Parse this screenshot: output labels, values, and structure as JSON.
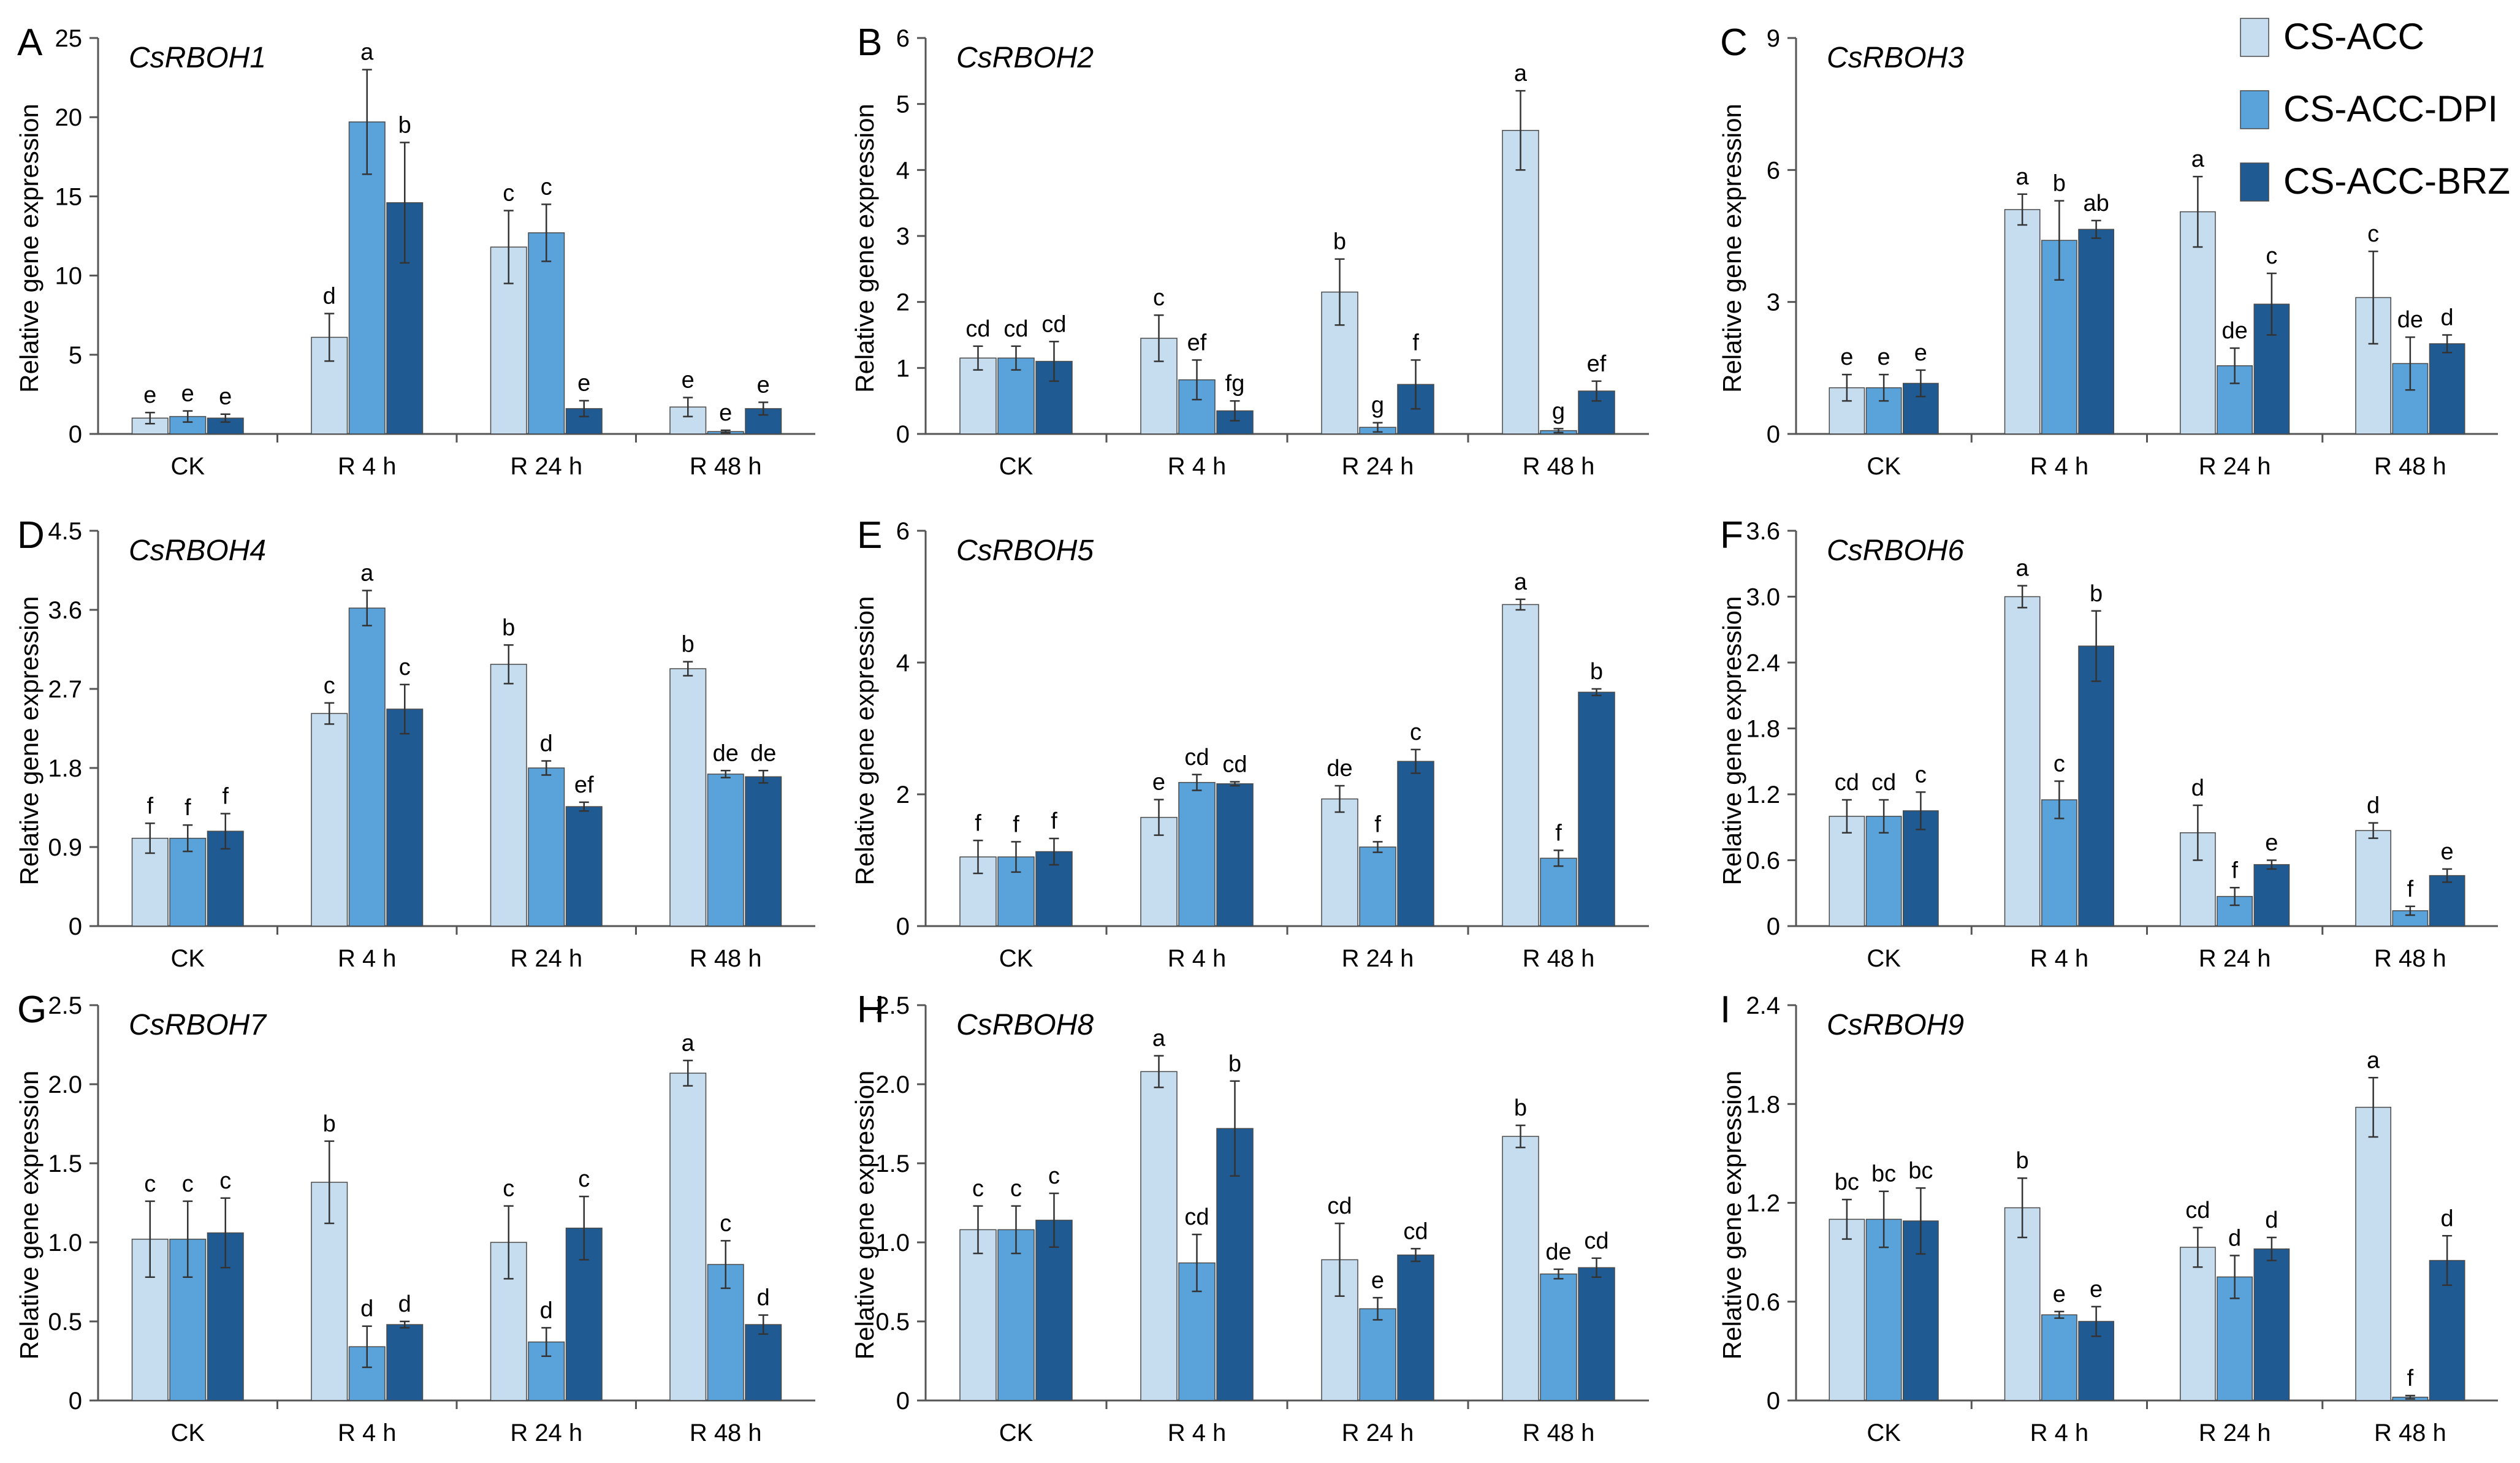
{
  "colors": {
    "series": [
      "#c6dcef",
      "#5aa3da",
      "#1f5a92"
    ],
    "stroke": "#4a4a4a",
    "axis": "#555555",
    "text": "#000000"
  },
  "legend": {
    "entries": [
      "CS-ACC",
      "CS-ACC-DPI",
      "CS-ACC-BRZ"
    ],
    "position": "top-right"
  },
  "chart_data": [
    {
      "panel": "A",
      "title": "CsRBOH1",
      "type": "bar",
      "ylabel": "Relative gene expression",
      "xlabel": "",
      "ylim": [
        0,
        25
      ],
      "yticks": [
        "0",
        "5",
        "10",
        "15",
        "20",
        "25"
      ],
      "categories": [
        "CK",
        "R 4 h",
        "R 24 h",
        "R 48 h"
      ],
      "series": [
        {
          "name": "CS-ACC",
          "values": [
            1.0,
            6.1,
            11.8,
            1.7
          ],
          "errors": [
            0.35,
            1.5,
            2.3,
            0.6
          ],
          "labels": [
            "e",
            "d",
            "c",
            "e"
          ]
        },
        {
          "name": "CS-ACC-DPI",
          "values": [
            1.1,
            19.7,
            12.7,
            0.15
          ],
          "errors": [
            0.35,
            3.3,
            1.8,
            0.08
          ],
          "labels": [
            "e",
            "a",
            "c",
            "e"
          ]
        },
        {
          "name": "CS-ACC-BRZ",
          "values": [
            1.0,
            14.6,
            1.6,
            1.6
          ],
          "errors": [
            0.25,
            3.8,
            0.5,
            0.4
          ],
          "labels": [
            "e",
            "b",
            "e",
            "e"
          ]
        }
      ]
    },
    {
      "panel": "B",
      "title": "CsRBOH2",
      "type": "bar",
      "ylabel": "Relative gene expression",
      "xlabel": "",
      "ylim": [
        0,
        6
      ],
      "yticks": [
        "0",
        "1",
        "2",
        "3",
        "4",
        "5",
        "6"
      ],
      "categories": [
        "CK",
        "R 4 h",
        "R 24 h",
        "R 48 h"
      ],
      "series": [
        {
          "name": "CS-ACC",
          "values": [
            1.15,
            1.45,
            2.15,
            4.6
          ],
          "errors": [
            0.18,
            0.35,
            0.5,
            0.6
          ],
          "labels": [
            "cd",
            "c",
            "b",
            "a"
          ]
        },
        {
          "name": "CS-ACC-DPI",
          "values": [
            1.15,
            0.82,
            0.1,
            0.05
          ],
          "errors": [
            0.18,
            0.3,
            0.07,
            0.03
          ],
          "labels": [
            "cd",
            "ef",
            "g",
            "g"
          ]
        },
        {
          "name": "CS-ACC-BRZ",
          "values": [
            1.1,
            0.35,
            0.75,
            0.65
          ],
          "errors": [
            0.3,
            0.15,
            0.37,
            0.15
          ],
          "labels": [
            "cd",
            "fg",
            "f",
            "ef"
          ]
        }
      ]
    },
    {
      "panel": "C",
      "title": "CsRBOH3",
      "type": "bar",
      "ylabel": "Relative gene expression",
      "xlabel": "",
      "ylim": [
        0,
        9
      ],
      "yticks": [
        "0",
        "3",
        "6",
        "9"
      ],
      "categories": [
        "CK",
        "R 4 h",
        "R 24 h",
        "R 48 h"
      ],
      "series": [
        {
          "name": "CS-ACC",
          "values": [
            1.05,
            5.1,
            5.05,
            3.1
          ],
          "errors": [
            0.3,
            0.35,
            0.8,
            1.05
          ],
          "labels": [
            "e",
            "a",
            "a",
            "c"
          ]
        },
        {
          "name": "CS-ACC-DPI",
          "values": [
            1.05,
            4.4,
            1.55,
            1.6
          ],
          "errors": [
            0.3,
            0.9,
            0.4,
            0.6
          ],
          "labels": [
            "e",
            "b",
            "de",
            "de"
          ]
        },
        {
          "name": "CS-ACC-BRZ",
          "values": [
            1.15,
            4.65,
            2.95,
            2.05
          ],
          "errors": [
            0.3,
            0.2,
            0.7,
            0.2
          ],
          "labels": [
            "e",
            "ab",
            "c",
            "d"
          ]
        }
      ]
    },
    {
      "panel": "D",
      "title": "CsRBOH4",
      "type": "bar",
      "ylabel": "Relative gene expression",
      "xlabel": "",
      "ylim": [
        0,
        4.5
      ],
      "yticks": [
        "0",
        "0.9",
        "1.8",
        "2.7",
        "3.6",
        "4.5"
      ],
      "categories": [
        "CK",
        "R 4 h",
        "R 24 h",
        "R 48 h"
      ],
      "series": [
        {
          "name": "CS-ACC",
          "values": [
            1.0,
            2.42,
            2.98,
            2.93
          ],
          "errors": [
            0.17,
            0.12,
            0.22,
            0.08
          ],
          "labels": [
            "f",
            "c",
            "b",
            "b"
          ]
        },
        {
          "name": "CS-ACC-DPI",
          "values": [
            1.0,
            3.62,
            1.8,
            1.73
          ],
          "errors": [
            0.15,
            0.2,
            0.08,
            0.04
          ],
          "labels": [
            "f",
            "a",
            "d",
            "de"
          ]
        },
        {
          "name": "CS-ACC-BRZ",
          "values": [
            1.08,
            2.47,
            1.36,
            1.7
          ],
          "errors": [
            0.2,
            0.28,
            0.05,
            0.07
          ],
          "labels": [
            "f",
            "c",
            "ef",
            "de"
          ]
        }
      ]
    },
    {
      "panel": "E",
      "title": "CsRBOH5",
      "type": "bar",
      "ylabel": "Relative gene expression",
      "xlabel": "",
      "ylim": [
        0,
        6
      ],
      "yticks": [
        "0",
        "2",
        "4",
        "6"
      ],
      "categories": [
        "CK",
        "R 4 h",
        "R 24 h",
        "R 48 h"
      ],
      "series": [
        {
          "name": "CS-ACC",
          "values": [
            1.05,
            1.65,
            1.93,
            4.88
          ],
          "errors": [
            0.25,
            0.27,
            0.2,
            0.08
          ],
          "labels": [
            "f",
            "e",
            "de",
            "a"
          ]
        },
        {
          "name": "CS-ACC-DPI",
          "values": [
            1.05,
            2.18,
            1.2,
            1.03
          ],
          "errors": [
            0.23,
            0.12,
            0.08,
            0.12
          ],
          "labels": [
            "f",
            "cd",
            "f",
            "f"
          ]
        },
        {
          "name": "CS-ACC-BRZ",
          "values": [
            1.13,
            2.16,
            2.5,
            3.55
          ],
          "errors": [
            0.2,
            0.03,
            0.18,
            0.05
          ],
          "labels": [
            "f",
            "cd",
            "c",
            "b"
          ]
        }
      ]
    },
    {
      "panel": "F",
      "title": "CsRBOH6",
      "type": "bar",
      "ylabel": "Relative gene expression",
      "xlabel": "",
      "ylim": [
        0,
        3.6
      ],
      "yticks": [
        "0",
        "0.6",
        "1.2",
        "1.8",
        "2.4",
        "3.0",
        "3.6"
      ],
      "categories": [
        "CK",
        "R 4 h",
        "R 24 h",
        "R 48 h"
      ],
      "series": [
        {
          "name": "CS-ACC",
          "values": [
            1.0,
            3.0,
            0.85,
            0.87
          ],
          "errors": [
            0.15,
            0.1,
            0.25,
            0.07
          ],
          "labels": [
            "cd",
            "a",
            "d",
            "d"
          ]
        },
        {
          "name": "CS-ACC-DPI",
          "values": [
            1.0,
            1.15,
            0.27,
            0.14
          ],
          "errors": [
            0.15,
            0.17,
            0.08,
            0.04
          ],
          "labels": [
            "cd",
            "c",
            "f",
            "f"
          ]
        },
        {
          "name": "CS-ACC-BRZ",
          "values": [
            1.05,
            2.55,
            0.56,
            0.46
          ],
          "errors": [
            0.17,
            0.32,
            0.04,
            0.06
          ],
          "labels": [
            "c",
            "b",
            "e",
            "e"
          ]
        }
      ]
    },
    {
      "panel": "G",
      "title": "CsRBOH7",
      "type": "bar",
      "ylabel": "Relative gene expression",
      "xlabel": "",
      "ylim": [
        0,
        2.5
      ],
      "yticks": [
        "0",
        "0.5",
        "1.0",
        "1.5",
        "2.0",
        "2.5"
      ],
      "categories": [
        "CK",
        "R 4 h",
        "R 24 h",
        "R 48 h"
      ],
      "series": [
        {
          "name": "CS-ACC",
          "values": [
            1.02,
            1.38,
            1.0,
            2.07
          ],
          "errors": [
            0.24,
            0.26,
            0.23,
            0.08
          ],
          "labels": [
            "c",
            "b",
            "c",
            "a"
          ]
        },
        {
          "name": "CS-ACC-DPI",
          "values": [
            1.02,
            0.34,
            0.37,
            0.86
          ],
          "errors": [
            0.24,
            0.13,
            0.09,
            0.15
          ],
          "labels": [
            "c",
            "d",
            "d",
            "c"
          ]
        },
        {
          "name": "CS-ACC-BRZ",
          "values": [
            1.06,
            0.48,
            1.09,
            0.48
          ],
          "errors": [
            0.22,
            0.02,
            0.2,
            0.06
          ],
          "labels": [
            "c",
            "d",
            "c",
            "d"
          ]
        }
      ]
    },
    {
      "panel": "H",
      "title": "CsRBOH8",
      "type": "bar",
      "ylabel": "Relative gene expression",
      "xlabel": "",
      "ylim": [
        0,
        2.5
      ],
      "yticks": [
        "0",
        "0.5",
        "1.0",
        "1.5",
        "2.0",
        "2.5"
      ],
      "categories": [
        "CK",
        "R 4 h",
        "R 24 h",
        "R 48 h"
      ],
      "series": [
        {
          "name": "CS-ACC",
          "values": [
            1.08,
            2.08,
            0.89,
            1.67
          ],
          "errors": [
            0.15,
            0.1,
            0.23,
            0.07
          ],
          "labels": [
            "c",
            "a",
            "cd",
            "b"
          ]
        },
        {
          "name": "CS-ACC-DPI",
          "values": [
            1.08,
            0.87,
            0.58,
            0.8
          ],
          "errors": [
            0.15,
            0.18,
            0.07,
            0.03
          ],
          "labels": [
            "c",
            "cd",
            "e",
            "de"
          ]
        },
        {
          "name": "CS-ACC-BRZ",
          "values": [
            1.14,
            1.72,
            0.92,
            0.84
          ],
          "errors": [
            0.17,
            0.3,
            0.04,
            0.06
          ],
          "labels": [
            "c",
            "b",
            "cd",
            "cd"
          ]
        }
      ]
    },
    {
      "panel": "I",
      "title": "CsRBOH9",
      "type": "bar",
      "ylabel": "Relative gene expression",
      "xlabel": "",
      "ylim": [
        0,
        2.4
      ],
      "yticks": [
        "0",
        "0.6",
        "1.2",
        "1.8",
        "2.4"
      ],
      "categories": [
        "CK",
        "R 4 h",
        "R 24 h",
        "R 48 h"
      ],
      "series": [
        {
          "name": "CS-ACC",
          "values": [
            1.1,
            1.17,
            0.93,
            1.78
          ],
          "errors": [
            0.12,
            0.18,
            0.12,
            0.18
          ],
          "labels": [
            "bc",
            "b",
            "cd",
            "a"
          ]
        },
        {
          "name": "CS-ACC-DPI",
          "values": [
            1.1,
            0.52,
            0.75,
            0.02
          ],
          "errors": [
            0.17,
            0.02,
            0.13,
            0.01
          ],
          "labels": [
            "bc",
            "e",
            "d",
            "f"
          ]
        },
        {
          "name": "CS-ACC-BRZ",
          "values": [
            1.09,
            0.48,
            0.92,
            0.85
          ],
          "errors": [
            0.2,
            0.09,
            0.07,
            0.15
          ],
          "labels": [
            "bc",
            "e",
            "d",
            "d"
          ]
        }
      ]
    }
  ]
}
